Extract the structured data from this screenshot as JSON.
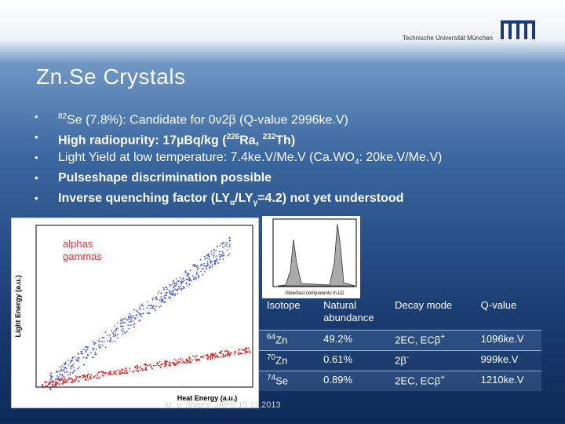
{
  "header": {
    "institution": "Technische Universität München",
    "title": "Zn.Se Crystals"
  },
  "bullets": [
    {
      "bold": false,
      "segments": [
        {
          "text": "82",
          "pos": "sup"
        },
        {
          "text": "Se (7.8%): Candidate for 0ν2β (Q-value 2996ke.V)"
        }
      ]
    },
    {
      "bold": true,
      "segments": [
        {
          "text": "High radiopurity: 17µBq/kg ("
        },
        {
          "text": "226",
          "pos": "sup"
        },
        {
          "text": "Ra, "
        },
        {
          "text": "232",
          "pos": "sup"
        },
        {
          "text": "Th)"
        }
      ]
    },
    {
      "bold": false,
      "segments": [
        {
          "text": "Light Yield at low temperature: 7.4ke.V/Me.V (Ca.WO"
        },
        {
          "text": "4",
          "pos": "sub"
        },
        {
          "text": ": 20ke.V/Me.V)"
        }
      ]
    },
    {
      "bold": true,
      "segments": [
        {
          "text": "Pulseshape discrimination possible"
        }
      ]
    },
    {
      "bold": true,
      "segments": [
        {
          "text": "Inverse quenching factor (LY"
        },
        {
          "text": "α",
          "pos": "sub"
        },
        {
          "text": "/LY"
        },
        {
          "text": "γ",
          "pos": "sub"
        },
        {
          "text": "=4.2) not yet understood"
        }
      ]
    }
  ],
  "plot": {
    "y_label": "Light Energy (a.u.)",
    "x_label": "Heat Energy (a.u.)",
    "legend": [
      "alphas",
      "gammas"
    ],
    "inset_x_label": "Slow/fast components in LD"
  },
  "table": {
    "header": [
      "Isotope",
      "Natural abundance",
      "Decay mode",
      "Q-value"
    ],
    "rows": [
      [
        [
          {
            "text": "64",
            "pos": "sup"
          },
          {
            "text": "Zn"
          }
        ],
        [
          {
            "text": "49.2%"
          }
        ],
        [
          {
            "text": "2EC, ECβ"
          },
          {
            "text": "+",
            "pos": "sup"
          }
        ],
        [
          {
            "text": "1096ke.V"
          }
        ]
      ],
      [
        [
          {
            "text": "70",
            "pos": "sup"
          },
          {
            "text": "Zn"
          }
        ],
        [
          {
            "text": "0.61%"
          }
        ],
        [
          {
            "text": "2β"
          },
          {
            "text": "-",
            "pos": "sup"
          }
        ],
        [
          {
            "text": "999ke.V"
          }
        ]
      ],
      [
        [
          {
            "text": "74",
            "pos": "sup"
          },
          {
            "text": "Se"
          }
        ],
        [
          {
            "text": "0.89%"
          }
        ],
        [
          {
            "text": "2EC, ECβ"
          },
          {
            "text": "+",
            "pos": "sup"
          }
        ],
        [
          {
            "text": "1210ke.V"
          }
        ]
      ]
    ]
  },
  "footer": "M. v. Sivers, JAPS 15.11.2013"
}
